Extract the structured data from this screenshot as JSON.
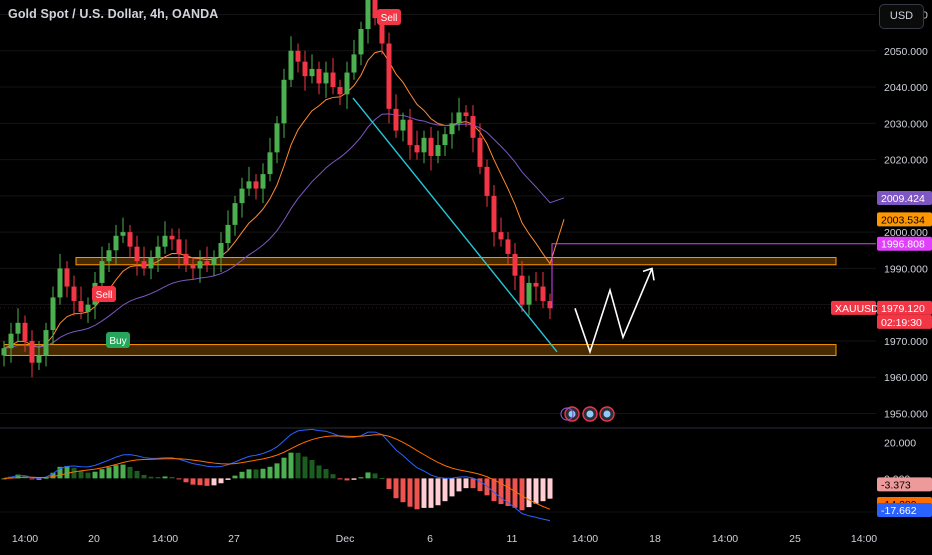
{
  "header": {
    "title": "Gold Spot / U.S. Dollar, 4h, OANDA",
    "currency_button": "USD"
  },
  "colors": {
    "background": "#000000",
    "up": "#26a69a",
    "up_bright": "#4caf50",
    "down": "#f23645",
    "ema_fast": "#ff8a30",
    "ema_slow": "#7e57c2",
    "zone": "#ff9800",
    "trendline": "#26c6da",
    "projection": "#ffffff",
    "magenta": "#e040fb"
  },
  "price_axis": {
    "labels": [
      "2060.000",
      "2050.000",
      "2040.000",
      "2030.000",
      "2020.000",
      "2010.000",
      "2000.000",
      "1990.000",
      "1980.000",
      "1970.000",
      "1960.000",
      "1950.000"
    ],
    "badges": {
      "ema_slow": "2009.424",
      "ema_fast": "2003.534",
      "level": "1996.808",
      "symbol": "XAUUSD",
      "last": "1979.120",
      "countdown": "02:19:30"
    }
  },
  "indicator_axis": {
    "labels": [
      "20.000",
      "0.000"
    ],
    "badges": {
      "histogram": "-3.373",
      "signal": "-14.289",
      "macd": "-17.662"
    }
  },
  "time_axis": {
    "labels": [
      "14:00",
      "20",
      "14:00",
      "27",
      "Dec",
      "6",
      "11",
      "14:00",
      "18",
      "14:00",
      "25",
      "14:00"
    ]
  },
  "markers": {
    "sell_top": "Sell",
    "sell_left": "Sell",
    "buy_left": "Buy"
  },
  "chart_data": {
    "type": "candlestick",
    "symbol": "XAUUSD",
    "timeframe": "4h",
    "ylim": [
      1946,
      2064
    ],
    "candles_close_approx": [
      1968,
      1972,
      1975,
      1970,
      1964,
      1966,
      1973,
      1982,
      1990,
      1985,
      1981,
      1978,
      1980,
      1986,
      1992,
      1995,
      1999,
      2000,
      1996,
      1992,
      1990,
      1993,
      1996,
      1999,
      1998,
      1994,
      1991,
      1990,
      1992,
      1991,
      1993,
      1997,
      2002,
      2008,
      2012,
      2014,
      2012,
      2016,
      2022,
      2030,
      2042,
      2050,
      2047,
      2043,
      2045,
      2041,
      2044,
      2040,
      2038,
      2044,
      2049,
      2056,
      2066,
      2059,
      2052,
      2034,
      2028,
      2031,
      2024,
      2022,
      2026,
      2021,
      2024,
      2027,
      2030,
      2033,
      2032,
      2026,
      2018,
      2010,
      2000,
      1998,
      1994,
      1988,
      1980,
      1986,
      1985,
      1981,
      1979
    ],
    "support_zone": [
      1966,
      1969
    ],
    "resistance_zone": [
      1991,
      1993
    ],
    "ema_fast_last": 2003.534,
    "ema_slow_last": 2009.424,
    "last_price": 1979.12,
    "projection_path": [
      1979,
      1967,
      1984,
      1971,
      1990
    ],
    "indicator": {
      "type": "macd",
      "ylim": [
        -21,
        27
      ],
      "macd_last": -17.662,
      "signal_last": -14.289,
      "histogram_last": -3.373
    }
  }
}
